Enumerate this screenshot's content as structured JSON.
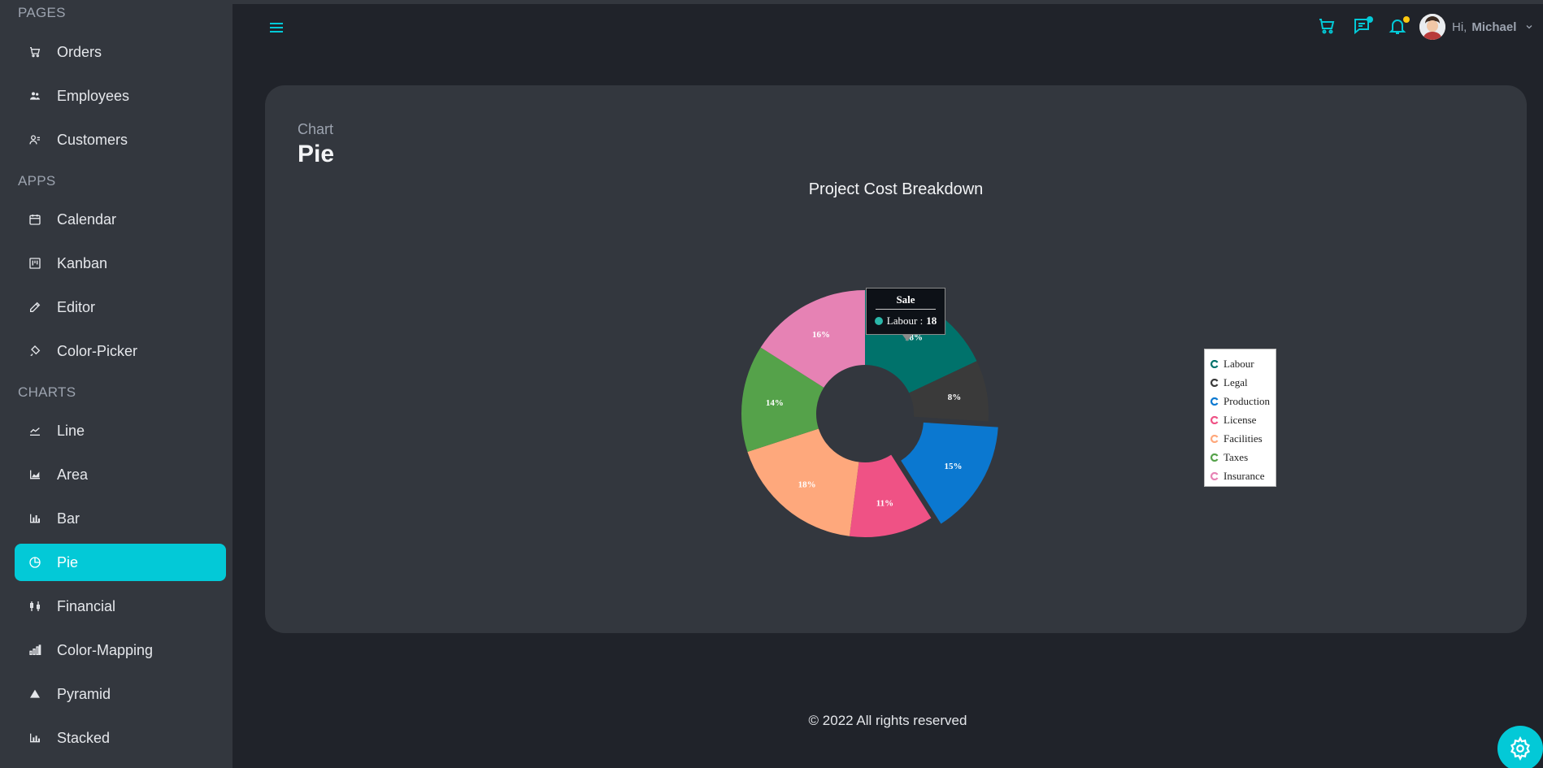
{
  "sidebar": {
    "sections": [
      {
        "title": "PAGES",
        "items": [
          {
            "label": "Orders",
            "icon": "cart-icon"
          },
          {
            "label": "Employees",
            "icon": "group-icon"
          },
          {
            "label": "Customers",
            "icon": "users-icon"
          }
        ]
      },
      {
        "title": "APPS",
        "items": [
          {
            "label": "Calendar",
            "icon": "calendar-icon"
          },
          {
            "label": "Kanban",
            "icon": "kanban-icon"
          },
          {
            "label": "Editor",
            "icon": "edit-icon"
          },
          {
            "label": "Color-Picker",
            "icon": "brush-icon"
          }
        ]
      },
      {
        "title": "CHARTS",
        "items": [
          {
            "label": "Line",
            "icon": "line-chart-icon"
          },
          {
            "label": "Area",
            "icon": "area-chart-icon"
          },
          {
            "label": "Bar",
            "icon": "bar-chart-icon"
          },
          {
            "label": "Pie",
            "icon": "pie-chart-icon",
            "active": true
          },
          {
            "label": "Financial",
            "icon": "financial-icon"
          },
          {
            "label": "Color-Mapping",
            "icon": "color-mapping-icon"
          },
          {
            "label": "Pyramid",
            "icon": "pyramid-icon"
          },
          {
            "label": "Stacked",
            "icon": "stacked-chart-icon"
          }
        ]
      }
    ]
  },
  "header": {
    "greeting": "Hi,",
    "user_name": "Michael"
  },
  "card": {
    "category": "Chart",
    "title": "Pie"
  },
  "tooltip": {
    "header": "Sale",
    "label": "Labour :",
    "value": "18"
  },
  "footer": {
    "text": "© 2022 All rights reserved"
  },
  "colors": {
    "accent": "#03c9d7",
    "sidebar_bg": "#33373e",
    "page_bg": "#20232a"
  },
  "chart_data": {
    "type": "pie",
    "title": "Project Cost Breakdown",
    "series_name": "Sale",
    "categories": [
      "Labour",
      "Legal",
      "Production",
      "License",
      "Facilities",
      "Taxes",
      "Insurance"
    ],
    "values": [
      18,
      8,
      15,
      11,
      18,
      14,
      16
    ],
    "data_labels": [
      "18%",
      "8%",
      "15%",
      "11%",
      "18%",
      "14%",
      "16%"
    ],
    "colors": [
      "#00726b",
      "#3a3a3a",
      "#0b78d0",
      "#ef5285",
      "#fea87c",
      "#55a24a",
      "#e682b4"
    ],
    "exploded": "Production",
    "donut": true,
    "legend_position": "right"
  }
}
